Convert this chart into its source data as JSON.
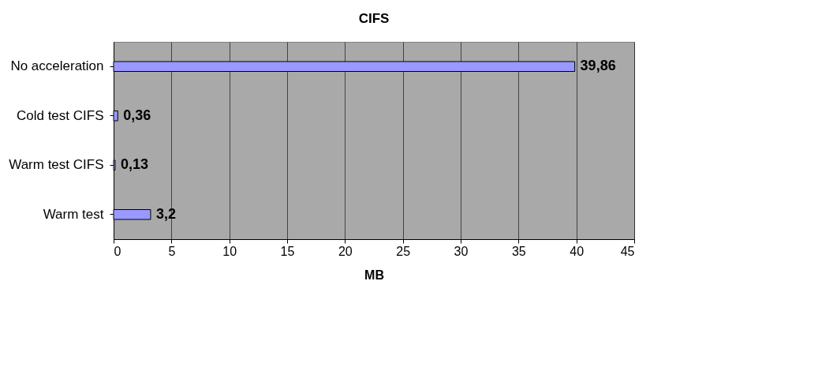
{
  "chart_data": {
    "type": "bar",
    "orientation": "horizontal",
    "title": "CIFS",
    "xlabel": "MB",
    "categories": [
      "No acceleration",
      "Cold test CIFS",
      "Warm test CIFS",
      "Warm test"
    ],
    "values": [
      39.86,
      0.36,
      0.13,
      3.2
    ],
    "value_labels": [
      "39,86",
      "0,36",
      "0,13",
      "3,2"
    ],
    "color": "#9999ff",
    "xlim": [
      0,
      45
    ],
    "xticks": [
      0,
      5,
      10,
      15,
      20,
      25,
      30,
      35,
      40,
      45
    ],
    "grid": "x"
  }
}
